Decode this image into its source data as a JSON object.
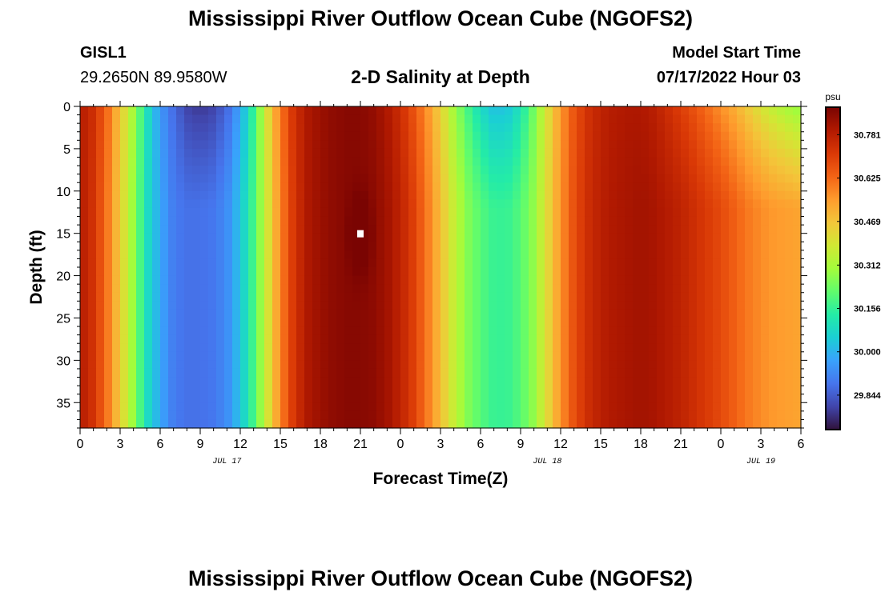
{
  "header": {
    "main_title": "Mississippi River Outflow Ocean Cube (NGOFS2)",
    "station_name": "GISL1",
    "station_coords": "29.2650N  89.9580W",
    "subtitle": "2-D Salinity at Depth",
    "model_start_label": "Model Start Time",
    "model_start_value": "07/17/2022 Hour 03"
  },
  "footer": {
    "repeated_title": "Mississippi River Outflow Ocean Cube (NGOFS2)"
  },
  "chart_data": {
    "type": "heatmap",
    "title": "2-D Salinity at Depth",
    "xlabel": "Forecast Time(Z)",
    "ylabel": "Depth (ft)",
    "colorbar_unit": "psu",
    "x_hours_range": [
      0,
      54
    ],
    "x_tick_labels": [
      "0",
      "3",
      "6",
      "9",
      "12",
      "15",
      "18",
      "21",
      "0",
      "3",
      "6",
      "9",
      "12",
      "15",
      "18",
      "21",
      "0",
      "3",
      "6"
    ],
    "date_labels": [
      {
        "label": "JUL 17",
        "hour": 11
      },
      {
        "label": "JUL 18",
        "hour": 35
      },
      {
        "label": "JUL 19",
        "hour": 51
      }
    ],
    "y_range": [
      0,
      38
    ],
    "y_reversed": true,
    "y_tick_values": [
      0,
      5,
      10,
      15,
      20,
      25,
      30,
      35
    ],
    "colorbar_ticks": [
      29.844,
      30.0,
      30.156,
      30.312,
      30.469,
      30.625,
      30.781
    ],
    "colorbar_range": [
      29.72,
      30.88
    ],
    "colormap_stops": [
      "#30123b",
      "#4145ab",
      "#4675ed",
      "#39a2fc",
      "#1bcfd4",
      "#24eca6",
      "#61fc6c",
      "#a4fc3b",
      "#d1e834",
      "#f3c63a",
      "#fe9b2d",
      "#f36315",
      "#d93806",
      "#b11901",
      "#7a0402"
    ],
    "salinity_profile_by_hour": [
      [
        0,
        30.79,
        30.79
      ],
      [
        1,
        30.74,
        30.73
      ],
      [
        2,
        30.63,
        30.61
      ],
      [
        3,
        30.47,
        30.45
      ],
      [
        4,
        30.3,
        30.28
      ],
      [
        5,
        30.1,
        30.09
      ],
      [
        6,
        29.95,
        29.98
      ],
      [
        7,
        29.87,
        29.9
      ],
      [
        8,
        29.8,
        29.88
      ],
      [
        9,
        29.78,
        29.88
      ],
      [
        10,
        29.8,
        29.89
      ],
      [
        11,
        29.86,
        29.93
      ],
      [
        12,
        29.97,
        30.03
      ],
      [
        13,
        30.16,
        30.18
      ],
      [
        14,
        30.4,
        30.38
      ],
      [
        15,
        30.6,
        30.58
      ],
      [
        16,
        30.73,
        30.72
      ],
      [
        17,
        30.8,
        30.8
      ],
      [
        18,
        30.83,
        30.83
      ],
      [
        19,
        30.85,
        30.85
      ],
      [
        20,
        30.86,
        30.86
      ],
      [
        21,
        30.86,
        30.86
      ],
      [
        22,
        30.84,
        30.85
      ],
      [
        23,
        30.8,
        30.82
      ],
      [
        24,
        30.74,
        30.77
      ],
      [
        25,
        30.66,
        30.7
      ],
      [
        26,
        30.56,
        30.6
      ],
      [
        27,
        30.44,
        30.48
      ],
      [
        28,
        30.3,
        30.36
      ],
      [
        29,
        30.18,
        30.26
      ],
      [
        30,
        30.08,
        30.2
      ],
      [
        31,
        30.02,
        30.16
      ],
      [
        32,
        30.03,
        30.16
      ],
      [
        33,
        30.1,
        30.2
      ],
      [
        34,
        30.24,
        30.28
      ],
      [
        35,
        30.4,
        30.42
      ],
      [
        36,
        30.55,
        30.56
      ],
      [
        37,
        30.66,
        30.67
      ],
      [
        38,
        30.73,
        30.74
      ],
      [
        39,
        30.77,
        30.78
      ],
      [
        40,
        30.79,
        30.8
      ],
      [
        41,
        30.8,
        30.81
      ],
      [
        42,
        30.8,
        30.82
      ],
      [
        43,
        30.78,
        30.81
      ],
      [
        44,
        30.74,
        30.79
      ],
      [
        45,
        30.7,
        30.77
      ],
      [
        46,
        30.66,
        30.74
      ],
      [
        47,
        30.61,
        30.71
      ],
      [
        48,
        30.56,
        30.68
      ],
      [
        49,
        30.51,
        30.64
      ],
      [
        50,
        30.45,
        30.6
      ],
      [
        51,
        30.39,
        30.57
      ],
      [
        52,
        30.34,
        30.55
      ],
      [
        53,
        30.3,
        30.54
      ],
      [
        54,
        30.27,
        30.53
      ]
    ],
    "missing_value_marker": {
      "hour": 21,
      "depth": 15
    }
  }
}
